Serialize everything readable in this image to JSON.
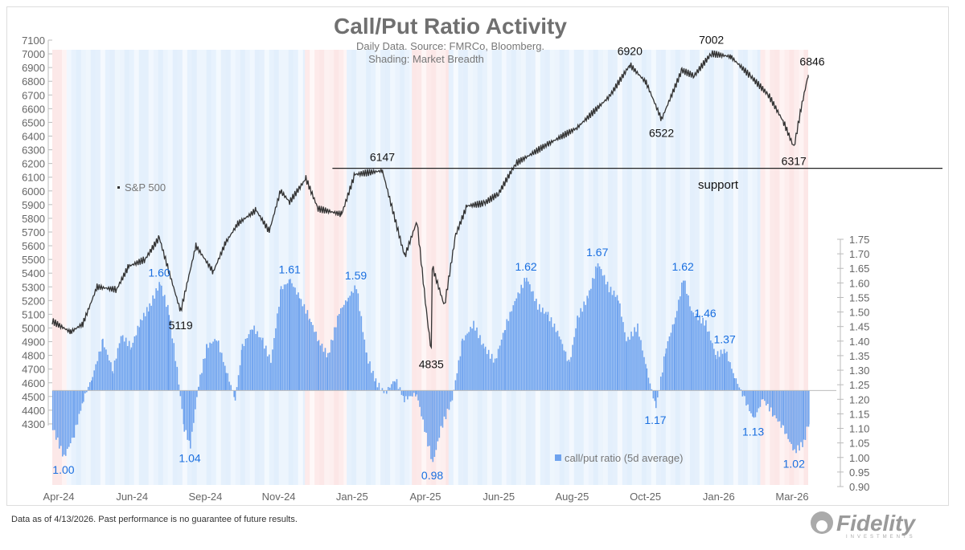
{
  "chart_data": {
    "type": "bar+line",
    "title": "Call/Put Ratio Activity",
    "subtitle": [
      "Daily Data.  Source: FMRCo, Bloomberg.",
      "Shading: Market Breadth"
    ],
    "left_axis": {
      "ticks": [
        7100,
        7000,
        6900,
        6800,
        6700,
        6600,
        6500,
        6400,
        6300,
        6200,
        6100,
        6000,
        5900,
        5800,
        5700,
        5600,
        5500,
        5400,
        5300,
        5200,
        5100,
        5000,
        4900,
        4800,
        4700,
        4600,
        4500,
        4400,
        4300
      ],
      "range": [
        4300,
        7100
      ]
    },
    "right_axis": {
      "ticks": [
        "1.75",
        "1.70",
        "1.65",
        "1.60",
        "1.55",
        "1.50",
        "1.45",
        "1.40",
        "1.35",
        "1.30",
        "1.25",
        "1.20",
        "1.15",
        "1.10",
        "1.05",
        "1.00",
        "0.95",
        "0.90"
      ],
      "range": [
        0.9,
        1.75
      ],
      "baseline": 1.23
    },
    "x_ticks": [
      "Apr-24",
      "Jun-24",
      "Sep-24",
      "Nov-24",
      "Jan-25",
      "Apr-25",
      "Jun-25",
      "Aug-25",
      "Oct-25",
      "Jan-26",
      "Mar-26"
    ],
    "x_range": [
      "2024-04-01",
      "2026-04-13"
    ],
    "sp500": {
      "name": "S&P 500",
      "color": "#333333",
      "points": [
        [
          "2024-04-01",
          5050
        ],
        [
          "2024-04-19",
          4970
        ],
        [
          "2024-05-01",
          5030
        ],
        [
          "2024-05-15",
          5300
        ],
        [
          "2024-06-03",
          5280
        ],
        [
          "2024-06-15",
          5450
        ],
        [
          "2024-07-01",
          5500
        ],
        [
          "2024-07-15",
          5660
        ],
        [
          "2024-07-25",
          5400
        ],
        [
          "2024-08-05",
          5120
        ],
        [
          "2024-08-20",
          5600
        ],
        [
          "2024-09-06",
          5410
        ],
        [
          "2024-09-18",
          5620
        ],
        [
          "2024-09-30",
          5760
        ],
        [
          "2024-10-18",
          5860
        ],
        [
          "2024-10-31",
          5705
        ],
        [
          "2024-11-11",
          6000
        ],
        [
          "2024-11-20",
          5920
        ],
        [
          "2024-12-06",
          6090
        ],
        [
          "2024-12-18",
          5870
        ],
        [
          "2025-01-10",
          5830
        ],
        [
          "2025-01-23",
          6120
        ],
        [
          "2025-02-19",
          6147
        ],
        [
          "2025-03-13",
          5520
        ],
        [
          "2025-03-25",
          5780
        ],
        [
          "2025-04-04",
          5070
        ],
        [
          "2025-04-08",
          4835
        ],
        [
          "2025-04-09",
          5450
        ],
        [
          "2025-04-21",
          5160
        ],
        [
          "2025-05-02",
          5680
        ],
        [
          "2025-05-13",
          5890
        ],
        [
          "2025-05-30",
          5910
        ],
        [
          "2025-06-13",
          5980
        ],
        [
          "2025-06-30",
          6200
        ],
        [
          "2025-07-31",
          6340
        ],
        [
          "2025-08-29",
          6460
        ],
        [
          "2025-09-30",
          6690
        ],
        [
          "2025-10-20",
          6920
        ],
        [
          "2025-11-05",
          6790
        ],
        [
          "2025-11-20",
          6522
        ],
        [
          "2025-12-10",
          6880
        ],
        [
          "2025-12-22",
          6840
        ],
        [
          "2026-01-08",
          7002
        ],
        [
          "2026-01-27",
          6980
        ],
        [
          "2026-02-15",
          6840
        ],
        [
          "2026-03-05",
          6700
        ],
        [
          "2026-03-20",
          6500
        ],
        [
          "2026-03-30",
          6317
        ],
        [
          "2026-04-06",
          6600
        ],
        [
          "2026-04-13",
          6846
        ]
      ]
    },
    "ratio": {
      "name": "call/put ratio (5d average)",
      "color": "#6fa3ee",
      "points": [
        [
          "2024-04-01",
          1.1
        ],
        [
          "2024-04-12",
          1.0
        ],
        [
          "2024-04-22",
          1.08
        ],
        [
          "2024-05-01",
          1.2
        ],
        [
          "2024-05-10",
          1.28
        ],
        [
          "2024-05-20",
          1.4
        ],
        [
          "2024-05-30",
          1.3
        ],
        [
          "2024-06-07",
          1.42
        ],
        [
          "2024-06-17",
          1.38
        ],
        [
          "2024-06-26",
          1.47
        ],
        [
          "2024-07-05",
          1.52
        ],
        [
          "2024-07-15",
          1.6
        ],
        [
          "2024-07-24",
          1.5
        ],
        [
          "2024-08-01",
          1.3
        ],
        [
          "2024-08-08",
          1.1
        ],
        [
          "2024-08-14",
          1.04
        ],
        [
          "2024-08-22",
          1.25
        ],
        [
          "2024-08-30",
          1.38
        ],
        [
          "2024-09-09",
          1.41
        ],
        [
          "2024-09-18",
          1.3
        ],
        [
          "2024-09-27",
          1.2
        ],
        [
          "2024-10-04",
          1.38
        ],
        [
          "2024-10-14",
          1.45
        ],
        [
          "2024-10-24",
          1.4
        ],
        [
          "2024-11-01",
          1.33
        ],
        [
          "2024-11-11",
          1.58
        ],
        [
          "2024-11-20",
          1.61
        ],
        [
          "2024-11-29",
          1.55
        ],
        [
          "2024-12-09",
          1.48
        ],
        [
          "2024-12-18",
          1.4
        ],
        [
          "2024-12-27",
          1.35
        ],
        [
          "2025-01-07",
          1.5
        ],
        [
          "2025-01-16",
          1.55
        ],
        [
          "2025-01-24",
          1.59
        ],
        [
          "2025-02-03",
          1.35
        ],
        [
          "2025-02-12",
          1.26
        ],
        [
          "2025-02-21",
          1.22
        ],
        [
          "2025-03-03",
          1.27
        ],
        [
          "2025-03-12",
          1.2
        ],
        [
          "2025-03-24",
          1.22
        ],
        [
          "2025-04-04",
          1.05
        ],
        [
          "2025-04-09",
          0.98
        ],
        [
          "2025-04-17",
          1.1
        ],
        [
          "2025-04-28",
          1.2
        ],
        [
          "2025-05-08",
          1.4
        ],
        [
          "2025-05-19",
          1.46
        ],
        [
          "2025-05-29",
          1.38
        ],
        [
          "2025-06-09",
          1.33
        ],
        [
          "2025-06-19",
          1.45
        ],
        [
          "2025-06-30",
          1.55
        ],
        [
          "2025-07-10",
          1.62
        ],
        [
          "2025-07-21",
          1.52
        ],
        [
          "2025-07-31",
          1.49
        ],
        [
          "2025-08-11",
          1.42
        ],
        [
          "2025-08-21",
          1.32
        ],
        [
          "2025-08-29",
          1.48
        ],
        [
          "2025-09-08",
          1.55
        ],
        [
          "2025-09-18",
          1.67
        ],
        [
          "2025-09-29",
          1.58
        ],
        [
          "2025-10-08",
          1.55
        ],
        [
          "2025-10-16",
          1.4
        ],
        [
          "2025-10-27",
          1.45
        ],
        [
          "2025-11-05",
          1.3
        ],
        [
          "2025-11-14",
          1.17
        ],
        [
          "2025-11-24",
          1.38
        ],
        [
          "2025-12-03",
          1.48
        ],
        [
          "2025-12-11",
          1.62
        ],
        [
          "2025-12-19",
          1.5
        ],
        [
          "2026-01-02",
          1.46
        ],
        [
          "2026-01-12",
          1.35
        ],
        [
          "2026-01-21",
          1.37
        ],
        [
          "2026-01-30",
          1.28
        ],
        [
          "2026-02-09",
          1.2
        ],
        [
          "2026-02-18",
          1.13
        ],
        [
          "2026-02-27",
          1.2
        ],
        [
          "2026-03-09",
          1.15
        ],
        [
          "2026-03-19",
          1.1
        ],
        [
          "2026-03-30",
          1.02
        ],
        [
          "2026-04-08",
          1.05
        ],
        [
          "2026-04-13",
          1.12
        ]
      ]
    },
    "support": {
      "label": "support",
      "value": 6165,
      "from": "2025-01-01"
    },
    "sp_annotations": [
      {
        "text": "6147",
        "date": "2025-02-19",
        "value": 6147
      },
      {
        "text": "5119",
        "date": "2024-08-05",
        "value": 5120
      },
      {
        "text": "4835",
        "date": "2025-04-08",
        "value": 4835
      },
      {
        "text": "6920",
        "date": "2025-10-20",
        "value": 6920
      },
      {
        "text": "6522",
        "date": "2025-11-20",
        "value": 6522
      },
      {
        "text": "7002",
        "date": "2026-01-08",
        "value": 7002
      },
      {
        "text": "6846",
        "date": "2026-04-13",
        "value": 6846
      },
      {
        "text": "6317",
        "date": "2026-03-30",
        "value": 6317
      }
    ],
    "ratio_annotations": [
      {
        "text": "1.00",
        "date": "2024-04-12",
        "value": 1.0
      },
      {
        "text": "1.60",
        "date": "2024-07-15",
        "value": 1.6
      },
      {
        "text": "1.04",
        "date": "2024-08-14",
        "value": 1.04
      },
      {
        "text": "1.61",
        "date": "2024-11-20",
        "value": 1.61
      },
      {
        "text": "1.59",
        "date": "2025-01-24",
        "value": 1.59
      },
      {
        "text": "0.98",
        "date": "2025-04-09",
        "value": 0.98
      },
      {
        "text": "1.62",
        "date": "2025-07-10",
        "value": 1.62
      },
      {
        "text": "1.67",
        "date": "2025-09-18",
        "value": 1.67
      },
      {
        "text": "1.17",
        "date": "2025-11-14",
        "value": 1.17
      },
      {
        "text": "1.62",
        "date": "2025-12-11",
        "value": 1.62
      },
      {
        "text": "1.46",
        "date": "2026-01-02",
        "value": 1.46
      },
      {
        "text": "1.37",
        "date": "2026-01-21",
        "value": 1.37
      },
      {
        "text": "1.13",
        "date": "2026-02-18",
        "value": 1.13
      },
      {
        "text": "1.02",
        "date": "2026-03-30",
        "value": 1.02
      }
    ],
    "breadth_shading": [
      [
        "2024-04-01",
        "2024-04-15",
        "red"
      ],
      [
        "2024-04-15",
        "2024-12-05",
        "blue"
      ],
      [
        "2024-12-05",
        "2025-01-15",
        "red"
      ],
      [
        "2025-01-15",
        "2025-03-20",
        "blue"
      ],
      [
        "2025-03-20",
        "2025-04-25",
        "red"
      ],
      [
        "2025-04-25",
        "2026-02-25",
        "blue"
      ],
      [
        "2026-02-25",
        "2026-04-13",
        "red"
      ]
    ],
    "legend": "bottom-center",
    "grid": false
  },
  "footnote": "Data as of 4/13/2026. Past performance is no guarantee of future results.",
  "logo": {
    "text": "Fidelity",
    "sub": "INVESTMENTS"
  }
}
